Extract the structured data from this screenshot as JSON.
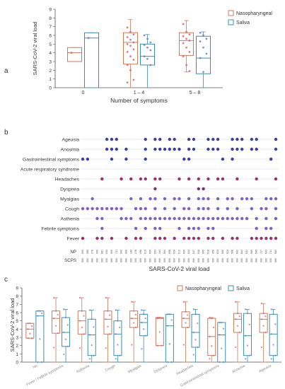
{
  "colors": {
    "np": "#c97b5a",
    "saliva": "#3a8fb0",
    "np_dot": "#e06070",
    "saliva_dot": "#6a7fd0",
    "axis": "#555555"
  },
  "chart_data": [
    {
      "panel": "a",
      "type": "box",
      "ylabel": "SARS-CoV-2 viral load",
      "xlabel": "Number of symptoms",
      "ylim": [
        0,
        9
      ],
      "yticks": [
        0,
        1,
        2,
        3,
        4,
        5,
        6,
        7,
        8,
        9
      ],
      "categories": [
        "0",
        "1 – 4",
        "5 – 8"
      ],
      "legend": [
        "Nasopharyngeal",
        "Saliva"
      ],
      "series": [
        {
          "name": "Nasopharyngeal",
          "boxes": [
            {
              "q1": 3.0,
              "median": 4.0,
              "q3": 4.6,
              "whislo": 3.0,
              "whishi": 4.6,
              "points": [
                4.0
              ]
            },
            {
              "q1": 2.7,
              "median": 5.2,
              "q3": 6.3,
              "whislo": 0.0,
              "whishi": 7.8,
              "points": [
                6.9,
                6.4,
                6.1,
                5.8,
                5.5,
                5.2,
                5.0,
                4.8,
                4.4,
                4.1,
                3.6,
                3.2,
                2.6,
                2.0,
                0.9,
                0.6
              ]
            },
            {
              "q1": 3.7,
              "median": 5.4,
              "q3": 6.3,
              "whislo": 1.8,
              "whishi": 7.7,
              "points": [
                7.3,
                6.4,
                6.1,
                5.9,
                5.6,
                5.4,
                5.1,
                4.6,
                4.1,
                3.6,
                2.6,
                1.9
              ]
            }
          ]
        },
        {
          "name": "Saliva",
          "boxes": [
            {
              "q1": 0.0,
              "median": 5.7,
              "q3": 6.3,
              "whislo": 0.0,
              "whishi": 6.3,
              "points": [
                5.7
              ]
            },
            {
              "q1": 2.6,
              "median": 3.6,
              "q3": 5.0,
              "whislo": 0.0,
              "whishi": 6.1,
              "points": [
                6.0,
                5.6,
                5.2,
                4.9,
                4.6,
                4.3,
                3.6,
                3.3,
                2.6
              ]
            },
            {
              "q1": 1.6,
              "median": 3.4,
              "q3": 5.9,
              "whislo": 0.0,
              "whishi": 6.4,
              "points": [
                6.3,
                6.0,
                5.6,
                5.3,
                4.6,
                3.9,
                3.4,
                1.8
              ]
            }
          ]
        }
      ]
    },
    {
      "panel": "b",
      "type": "dot-matrix",
      "xlabel": "SARS-CoV-2 viral load",
      "rows": [
        "Ageusia",
        "Anosmia",
        "Gastrointestinal symptoms",
        "Acute respiratory syndrome",
        "Headaches",
        "Dyspnea",
        "Myalgias",
        "Cough",
        "Asthenia",
        "Febrile symptoms",
        "Fever"
      ],
      "row_labels": [
        "NP",
        "SCPS"
      ],
      "np_values": [
        "000",
        "380",
        "276",
        "000",
        "681",
        "294",
        "000",
        "731",
        "000",
        "000",
        "189",
        "278",
        "298",
        "619",
        "000",
        "553",
        "444",
        "564",
        "698",
        "528",
        "512",
        "000",
        "524",
        "547",
        "540",
        "645",
        "518",
        "456",
        "623",
        "000",
        "523",
        "508",
        "602",
        "604",
        "531",
        "569",
        "546",
        "727",
        "643",
        "731",
        "582"
      ],
      "scps_values": [
        "000",
        "000",
        "000",
        "000",
        "000",
        "000",
        "000",
        "000",
        "000",
        "000",
        "000",
        "000",
        "000",
        "000",
        "000",
        "000",
        "000",
        "000",
        "000",
        "000",
        "000",
        "000",
        "000",
        "000",
        "000",
        "000",
        "000",
        "000",
        "000",
        "000",
        "000",
        "000",
        "000",
        "000",
        "000",
        "000",
        "000",
        "000",
        "000",
        "000",
        "000"
      ],
      "ncols": 41,
      "dots": {
        "Ageusia": [
          5,
          6,
          7,
          13,
          15,
          16,
          18,
          19,
          22,
          23,
          26,
          27,
          28,
          31,
          32,
          33,
          35,
          36,
          40
        ],
        "Anosmia": [
          5,
          6,
          7,
          9,
          13,
          15,
          16,
          17,
          18,
          19,
          20,
          22,
          23,
          26,
          27,
          28,
          31,
          32,
          33,
          35,
          36,
          40
        ],
        "Gastrointestinal symptoms": [
          0,
          1,
          6,
          9,
          13,
          21,
          22,
          29,
          31,
          39
        ],
        "Acute respiratory syndrome": [],
        "Headaches": [
          4,
          8,
          10,
          12,
          13,
          15,
          16,
          20,
          22,
          24,
          26,
          28,
          29,
          32,
          36,
          40
        ],
        "Dyspnea": [
          15,
          24,
          25
        ],
        "Myalgias": [
          2,
          10,
          12,
          14,
          15,
          17,
          19,
          20,
          22,
          24,
          25,
          26,
          28,
          30,
          31,
          33,
          34,
          35,
          38,
          39,
          40
        ],
        "Cough": [
          0,
          1,
          2,
          3,
          4,
          5,
          6,
          7,
          8,
          11,
          12,
          13,
          15,
          17,
          19,
          21,
          22,
          24,
          25,
          26,
          28,
          30,
          32,
          35,
          37,
          38,
          40
        ],
        "Asthenia": [
          3,
          4,
          8,
          9,
          10,
          12,
          13,
          14,
          15,
          16,
          17,
          18,
          19,
          20,
          21,
          22,
          23,
          24,
          25,
          26,
          27,
          28,
          29,
          30,
          31,
          32,
          33,
          34,
          36,
          38,
          40
        ],
        "Febrile symptoms": [
          4,
          11,
          13,
          15,
          16,
          20,
          22,
          23,
          24,
          26,
          27,
          36,
          38,
          39
        ],
        "Fever": [
          0,
          3,
          4,
          6,
          9,
          11,
          12,
          15,
          16,
          17,
          19,
          21,
          22,
          23,
          24,
          26,
          27,
          29,
          31,
          32,
          35,
          36,
          37,
          38,
          39,
          40
        ]
      }
    },
    {
      "panel": "c",
      "type": "box",
      "ylabel": "SARS-CoV-2 viral load",
      "ylim": [
        0,
        9
      ],
      "yticks": [
        0,
        1,
        2,
        3,
        4,
        5,
        6,
        7,
        8,
        9
      ],
      "categories": [
        "No",
        "Fever / Febrile symptoms",
        "Asthenia",
        "Cough",
        "Myalgias",
        "Dyspnea",
        "Headaches",
        "Gastrointestinal symptoms",
        "Anosmia",
        "Ageusia"
      ],
      "legend": [
        "Nasopharyngeal",
        "Saliva"
      ],
      "series": [
        {
          "name": "Nasopharyngeal",
          "boxes": [
            {
              "q1": 2.9,
              "median": 4.0,
              "q3": 4.7,
              "whislo": 2.9,
              "whishi": 4.7
            },
            {
              "q1": 3.5,
              "median": 5.3,
              "q3": 6.2,
              "whislo": 0.0,
              "whishi": 7.8
            },
            {
              "q1": 3.4,
              "median": 5.0,
              "q3": 6.2,
              "whislo": 0.0,
              "whishi": 7.8
            },
            {
              "q1": 3.4,
              "median": 5.2,
              "q3": 6.2,
              "whislo": 0.0,
              "whishi": 7.8
            },
            {
              "q1": 4.2,
              "median": 5.3,
              "q3": 6.2,
              "whislo": 0.0,
              "whishi": 7.3
            },
            {
              "q1": 2.0,
              "median": 5.3,
              "q3": 5.4,
              "whislo": 2.0,
              "whishi": 5.4
            },
            {
              "q1": 4.2,
              "median": 5.3,
              "q3": 6.1,
              "whislo": 0.0,
              "whishi": 7.3
            },
            {
              "q1": 0.8,
              "median": 3.1,
              "q3": 5.3,
              "whislo": 0.0,
              "whishi": 5.4
            },
            {
              "q1": 3.6,
              "median": 5.2,
              "q3": 5.9,
              "whislo": 0.0,
              "whishi": 7.3
            },
            {
              "q1": 3.6,
              "median": 5.2,
              "q3": 5.9,
              "whislo": 0.0,
              "whishi": 7.1
            }
          ]
        },
        {
          "name": "Saliva",
          "boxes": [
            {
              "q1": 0.0,
              "median": 5.6,
              "q3": 6.2,
              "whislo": 0.0,
              "whishi": 6.2
            },
            {
              "q1": 1.9,
              "median": 3.6,
              "q3": 5.4,
              "whislo": 0.0,
              "whishi": 6.4
            },
            {
              "q1": 0.8,
              "median": 3.3,
              "q3": 5.2,
              "whislo": 0.0,
              "whishi": 6.3
            },
            {
              "q1": 0.8,
              "median": 3.4,
              "q3": 5.0,
              "whislo": 0.0,
              "whishi": 6.3
            },
            {
              "q1": 3.2,
              "median": 4.8,
              "q3": 5.8,
              "whislo": 0.0,
              "whishi": 6.3
            },
            {
              "q1": 0.0,
              "median": 4.4,
              "q3": 5.8,
              "whislo": 0.0,
              "whishi": 5.8
            },
            {
              "q1": 1.8,
              "median": 3.6,
              "q3": 5.8,
              "whislo": 0.0,
              "whishi": 6.4
            },
            {
              "q1": 0.0,
              "median": 3.3,
              "q3": 4.8,
              "whislo": 0.0,
              "whishi": 4.8
            },
            {
              "q1": 0.8,
              "median": 3.2,
              "q3": 5.9,
              "whislo": 0.0,
              "whishi": 6.4
            },
            {
              "q1": 0.8,
              "median": 3.4,
              "q3": 5.8,
              "whislo": 0.0,
              "whishi": 6.4
            }
          ]
        }
      ]
    }
  ],
  "panel_letters": {
    "a": "a",
    "b": "b",
    "c": "c"
  }
}
